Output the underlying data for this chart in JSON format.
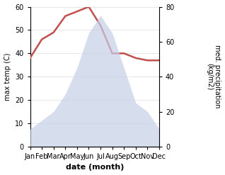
{
  "months": [
    "Jan",
    "Feb",
    "Mar",
    "Apr",
    "May",
    "Jun",
    "Jul",
    "Aug",
    "Sep",
    "Oct",
    "Nov",
    "Dec"
  ],
  "temperature": [
    38,
    46,
    49,
    56,
    58,
    60,
    52,
    40,
    40,
    38,
    37,
    37
  ],
  "precipitation": [
    10,
    15,
    20,
    30,
    45,
    65,
    75,
    65,
    45,
    25,
    20,
    10
  ],
  "temp_color": "#c0504d",
  "precip_fill_color": "#c5d0e8",
  "precip_fill_alpha": 0.7,
  "left_ylim": [
    0,
    60
  ],
  "right_ylim": [
    0,
    80
  ],
  "left_yticks": [
    0,
    10,
    20,
    30,
    40,
    50,
    60
  ],
  "right_yticks": [
    0,
    20,
    40,
    60,
    80
  ],
  "xlabel": "date (month)",
  "ylabel_left": "max temp (C)",
  "ylabel_right": "med. precipitation\n(kg/m2)",
  "bg_color": "#ffffff"
}
